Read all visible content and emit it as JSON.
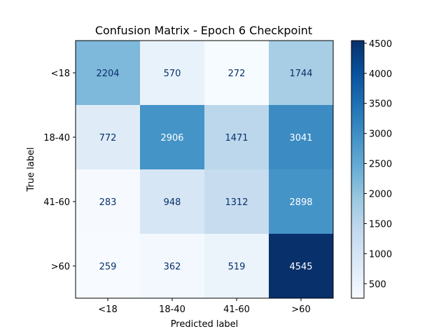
{
  "chart_data": {
    "type": "heatmap",
    "title": "Confusion Matrix - Epoch 6 Checkpoint",
    "xlabel": "Predicted label",
    "ylabel": "True label",
    "x_categories": [
      "<18",
      "18-40",
      "41-60",
      ">60"
    ],
    "y_categories": [
      "<18",
      "18-40",
      "41-60",
      ">60"
    ],
    "values": [
      [
        2204,
        570,
        272,
        1744
      ],
      [
        772,
        2906,
        1471,
        3041
      ],
      [
        283,
        948,
        1312,
        2898
      ],
      [
        259,
        362,
        519,
        4545
      ]
    ],
    "colorbar": {
      "ticks": [
        500,
        1000,
        1500,
        2000,
        2500,
        3000,
        3500,
        4000,
        4500
      ],
      "range": [
        259,
        4545
      ],
      "colormap": "Blues"
    }
  }
}
